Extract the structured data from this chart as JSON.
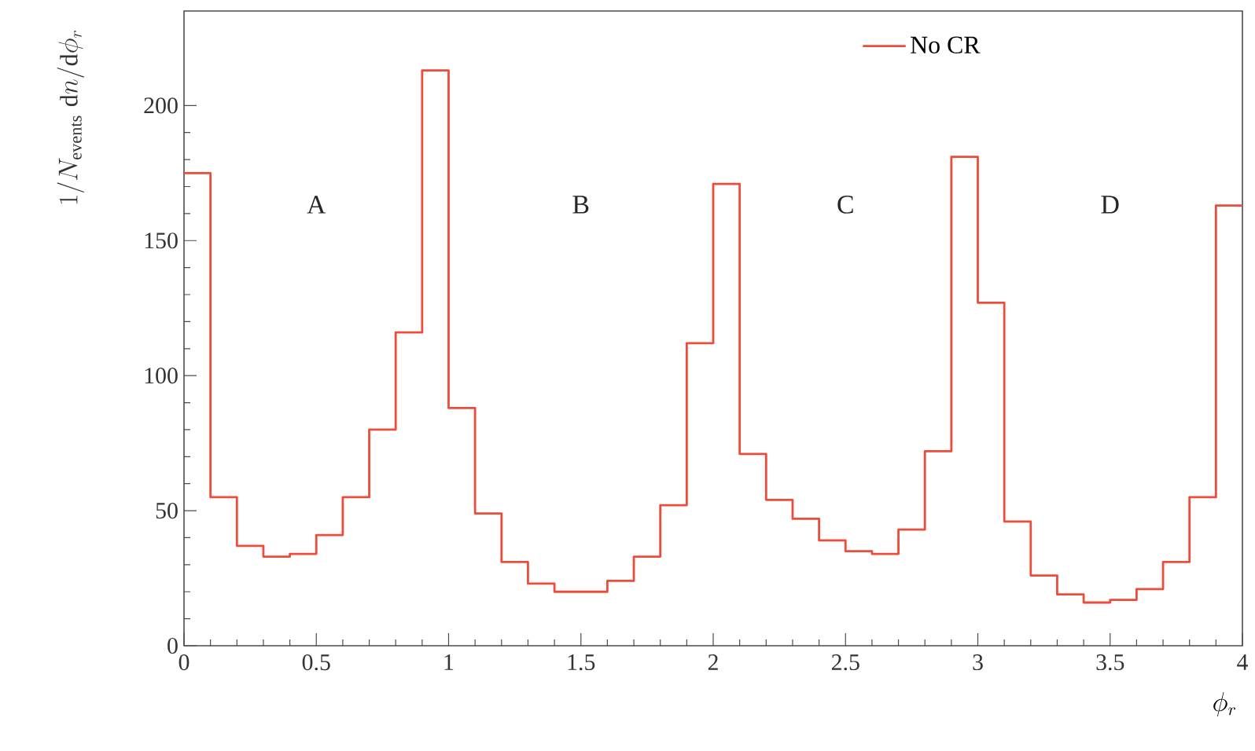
{
  "chart_data": {
    "type": "histogram",
    "xlabel": "\\phi_r",
    "ylabel": "1/N_{\\mathrm{events}}\\;\\mathrm{d}n/\\mathrm{d}\\phi_r",
    "bins": [
      0,
      0.1,
      0.2,
      0.3,
      0.4,
      0.5,
      0.6,
      0.7,
      0.8,
      0.9,
      1,
      1.1,
      1.2,
      1.3,
      1.4,
      1.5,
      1.6,
      1.7,
      1.8,
      1.9,
      2,
      2.1,
      2.2,
      2.3,
      2.4,
      2.5,
      2.6,
      2.7,
      2.8,
      2.9,
      3,
      3.1,
      3.2,
      3.3,
      3.4,
      3.5,
      3.6,
      3.7,
      3.8,
      3.9,
      4
    ],
    "series": [
      {
        "name": "No CR",
        "color": "#ee4b3b",
        "values": [
          175,
          55,
          37,
          33,
          34,
          41,
          55,
          80,
          116,
          213,
          88,
          49,
          31,
          23,
          20,
          20,
          24,
          33,
          52,
          112,
          171,
          71,
          54,
          47,
          39,
          35,
          34,
          43,
          72,
          181,
          127,
          46,
          26,
          19,
          16,
          17,
          21,
          31,
          55,
          163
        ]
      }
    ],
    "xlim": [
      0,
      4
    ],
    "ylim": [
      0,
      235
    ],
    "xticks": [
      0,
      0.5,
      1,
      1.5,
      2,
      2.5,
      3,
      3.5,
      4
    ],
    "yticks": [
      0,
      50,
      100,
      150,
      200
    ],
    "annotations": [
      "A",
      "B",
      "C",
      "D"
    ],
    "legend": "top right",
    "grid": false
  }
}
